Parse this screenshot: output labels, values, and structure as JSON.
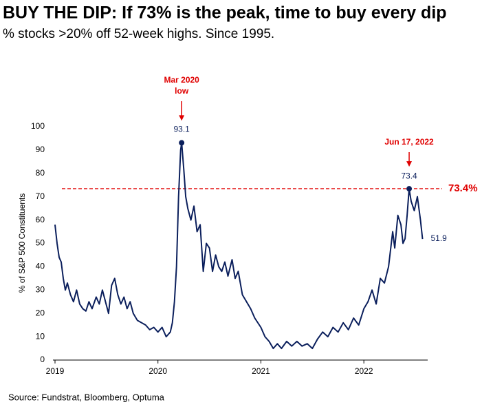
{
  "chart_data": {
    "type": "line",
    "title": "BUY THE DIP: If 73% is the peak, time to buy every dip",
    "subtitle": "% stocks >20% off 52-week highs.  Since 1995.",
    "y_label": "% of S&P 500 Constituents",
    "source": "Source: Fundstrat, Bloomberg, Optuma",
    "annotations": [
      [
        "Mar 2020",
        "low"
      ],
      [
        "Jun 17, 2022"
      ]
    ],
    "threshold": {
      "value": 73.4,
      "label": "73.4%",
      "color": "#e00000"
    },
    "xlim": [
      2018.98,
      2022.62
    ],
    "xticks": [
      2019,
      2020,
      2021,
      2022
    ],
    "ylim": [
      0,
      100
    ],
    "yticks": [
      0,
      10,
      20,
      30,
      40,
      50,
      60,
      70,
      80,
      90,
      100
    ],
    "x": [
      2019.0,
      2019.02,
      2019.04,
      2019.06,
      2019.08,
      2019.1,
      2019.12,
      2019.15,
      2019.18,
      2019.21,
      2019.24,
      2019.27,
      2019.3,
      2019.33,
      2019.36,
      2019.4,
      2019.43,
      2019.46,
      2019.49,
      2019.52,
      2019.55,
      2019.58,
      2019.61,
      2019.64,
      2019.67,
      2019.7,
      2019.73,
      2019.76,
      2019.8,
      2019.84,
      2019.88,
      2019.92,
      2019.96,
      2020.0,
      2020.04,
      2020.08,
      2020.12,
      2020.14,
      2020.16,
      2020.18,
      2020.2,
      2020.22,
      2020.23,
      2020.25,
      2020.27,
      2020.29,
      2020.32,
      2020.35,
      2020.38,
      2020.41,
      2020.44,
      2020.47,
      2020.5,
      2020.53,
      2020.56,
      2020.59,
      2020.62,
      2020.65,
      2020.68,
      2020.72,
      2020.75,
      2020.78,
      2020.82,
      2020.86,
      2020.9,
      2020.94,
      2021.0,
      2021.04,
      2021.08,
      2021.12,
      2021.16,
      2021.2,
      2021.25,
      2021.3,
      2021.35,
      2021.4,
      2021.45,
      2021.5,
      2021.55,
      2021.6,
      2021.65,
      2021.7,
      2021.75,
      2021.8,
      2021.85,
      2021.9,
      2021.95,
      2022.0,
      2022.04,
      2022.08,
      2022.12,
      2022.16,
      2022.2,
      2022.24,
      2022.28,
      2022.3,
      2022.33,
      2022.36,
      2022.38,
      2022.4,
      2022.42,
      2022.44,
      2022.46,
      2022.49,
      2022.52,
      2022.55,
      2022.57
    ],
    "series": [
      {
        "name": "% of S&P 500 Constituents",
        "color": "#0b1f5c",
        "values": [
          58,
          50,
          44,
          42,
          35,
          30,
          33,
          28,
          25,
          30,
          24,
          22,
          21,
          25,
          22,
          27,
          24,
          30,
          25,
          20,
          32,
          35,
          28,
          24,
          27,
          22,
          25,
          20,
          17,
          16,
          15,
          13,
          14,
          12,
          14,
          10,
          12,
          16,
          25,
          40,
          70,
          90,
          93.1,
          82,
          70,
          65,
          60,
          66,
          55,
          58,
          38,
          50,
          48,
          38,
          45,
          40,
          38,
          42,
          36,
          43,
          35,
          38,
          28,
          25,
          22,
          18,
          14,
          10,
          8,
          5,
          7,
          5,
          8,
          6,
          8,
          6,
          7,
          5,
          9,
          12,
          10,
          14,
          12,
          16,
          13,
          18,
          15,
          22,
          25,
          30,
          24,
          35,
          33,
          40,
          55,
          48,
          62,
          58,
          50,
          52,
          62,
          73.4,
          68,
          64,
          70,
          60,
          51.9
        ]
      }
    ]
  }
}
